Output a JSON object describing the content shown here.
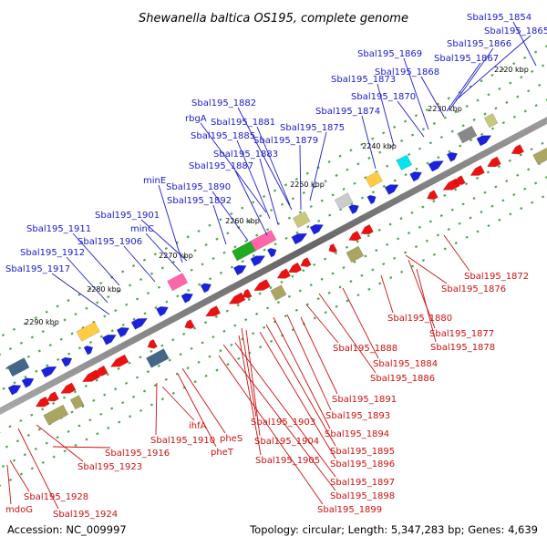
{
  "title": "Shewanella baltica OS195, complete genome",
  "footer": {
    "accession": "Accession: NC_009997",
    "stats": "Topology: circular; Length: 5,347,283 bp; Genes: 4,639"
  },
  "colors": {
    "forward_label": "#1a1acc",
    "reverse_label": "#cc1111",
    "backbone": "#888888"
  },
  "ticks": [
    "2220 kbp",
    "2230 kbp",
    "2240 kbp",
    "2250 kbp",
    "2260 kbp",
    "2270 kbp",
    "2280 kbp",
    "2290 kbp"
  ],
  "top_labels": [
    "Sbal195_1854",
    "Sbal195_1865",
    "Sbal195_1866",
    "Sbal195_1867",
    "Sbal195_1869",
    "Sbal195_1868",
    "Sbal195_1873",
    "Sbal195_1870",
    "Sbal195_1882",
    "Sbal195_1874",
    "rbgA",
    "Sbal195_1881",
    "Sbal195_1875",
    "Sbal195_1885",
    "Sbal195_1879",
    "Sbal195_1883",
    "Sbal195_1887",
    "minE",
    "Sbal195_1890",
    "Sbal195_1892",
    "Sbal195_1901",
    "minC",
    "Sbal195_1911",
    "Sbal195_1906",
    "Sbal195_1912",
    "Sbal195_1917"
  ],
  "bottom_labels": [
    "Sbal195_1872",
    "Sbal195_1876",
    "Sbal195_1880",
    "Sbal195_1877",
    "Sbal195_1878",
    "Sbal195_1888",
    "Sbal195_1884",
    "Sbal195_1886",
    "Sbal195_1891",
    "Sbal195_1893",
    "Sbal195_1903",
    "Sbal195_1894",
    "ihfA",
    "Sbal195_1910",
    "pheS",
    "Sbal195_1904",
    "pheT",
    "Sbal195_1895",
    "Sbal195_1916",
    "Sbal195_1896",
    "Sbal195_1905",
    "Sbal195_1923",
    "Sbal195_1897",
    "Sbal195_1898",
    "Sbal195_1928",
    "Sbal195_1899",
    "mdoG",
    "Sbal195_1924"
  ]
}
